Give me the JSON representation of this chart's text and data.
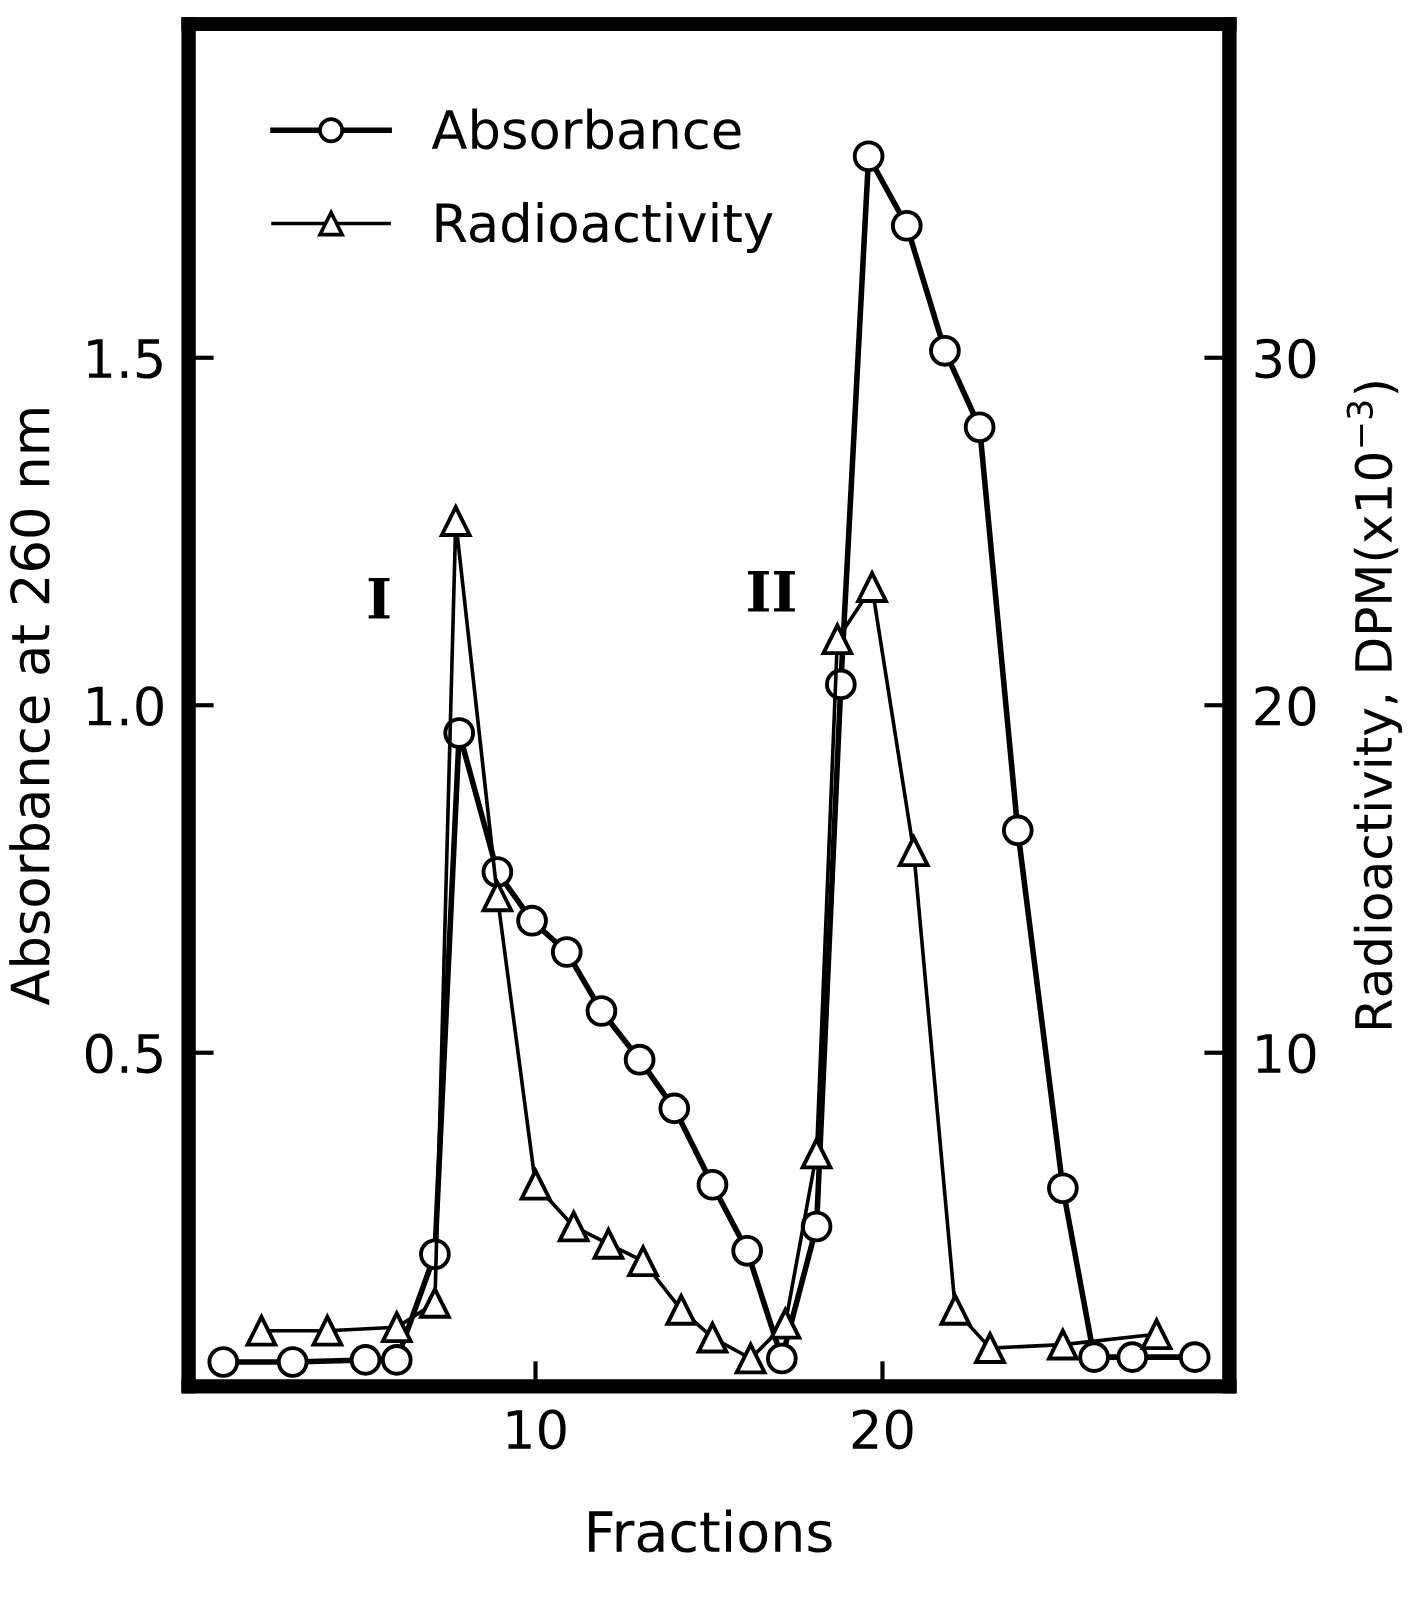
{
  "chart_data": {
    "type": "line",
    "xlabel": "Fractions",
    "ylabel": "Absorbance at 260 nm",
    "y2label": "Radioactivity, DPM(x10$^{−3}$)",
    "xlim": [
      0,
      30
    ],
    "xticks": [
      10,
      20
    ],
    "ylim": [
      0.02,
      1.98
    ],
    "yticks": [
      {
        "value": 0.5,
        "label": "0.5"
      },
      {
        "value": 1.0,
        "label": "1.0"
      },
      {
        "value": 1.5,
        "label": "1.5"
      }
    ],
    "y2lim": [
      0.4,
      39.6
    ],
    "y2ticks": [
      10,
      20,
      30
    ],
    "grid": false,
    "legend": "top left",
    "line_style": "solid",
    "annotations": [
      "I",
      "II"
    ],
    "series": [
      {
        "name": "Absorbance",
        "color": "#000000",
        "marker": "circle",
        "x": [
          1.0,
          3.0,
          5.1,
          6.0,
          7.1,
          7.8,
          8.9,
          9.9,
          10.9,
          11.9,
          13.0,
          14.0,
          15.1,
          16.1,
          17.1,
          18.1,
          18.8,
          19.6,
          20.7,
          21.8,
          22.8,
          23.9,
          25.2,
          26.1,
          27.2,
          29.0
        ],
        "values": [
          0.055,
          0.055,
          0.058,
          0.058,
          0.21,
          0.96,
          0.76,
          0.69,
          0.645,
          0.56,
          0.49,
          0.42,
          0.31,
          0.215,
          0.06,
          0.25,
          1.03,
          1.79,
          1.69,
          1.51,
          1.4,
          0.82,
          0.305,
          0.062,
          0.062,
          0.062
        ]
      },
      {
        "name": "Radioactivity",
        "color": "#000000",
        "marker": "triangle",
        "axis": "y2",
        "x": [
          2.1,
          4.0,
          6.0,
          7.1,
          7.7,
          8.9,
          10.0,
          11.1,
          12.1,
          13.1,
          14.2,
          15.1,
          16.2,
          17.2,
          18.1,
          18.7,
          19.7,
          20.9,
          22.1,
          23.1,
          25.2,
          27.9
        ],
        "values": [
          2.0,
          2.0,
          2.1,
          2.8,
          25.3,
          14.5,
          6.2,
          5.0,
          4.5,
          4.0,
          2.6,
          1.8,
          1.2,
          2.2,
          7.1,
          21.9,
          23.4,
          15.8,
          2.6,
          1.5,
          1.6,
          1.9
        ]
      }
    ]
  }
}
